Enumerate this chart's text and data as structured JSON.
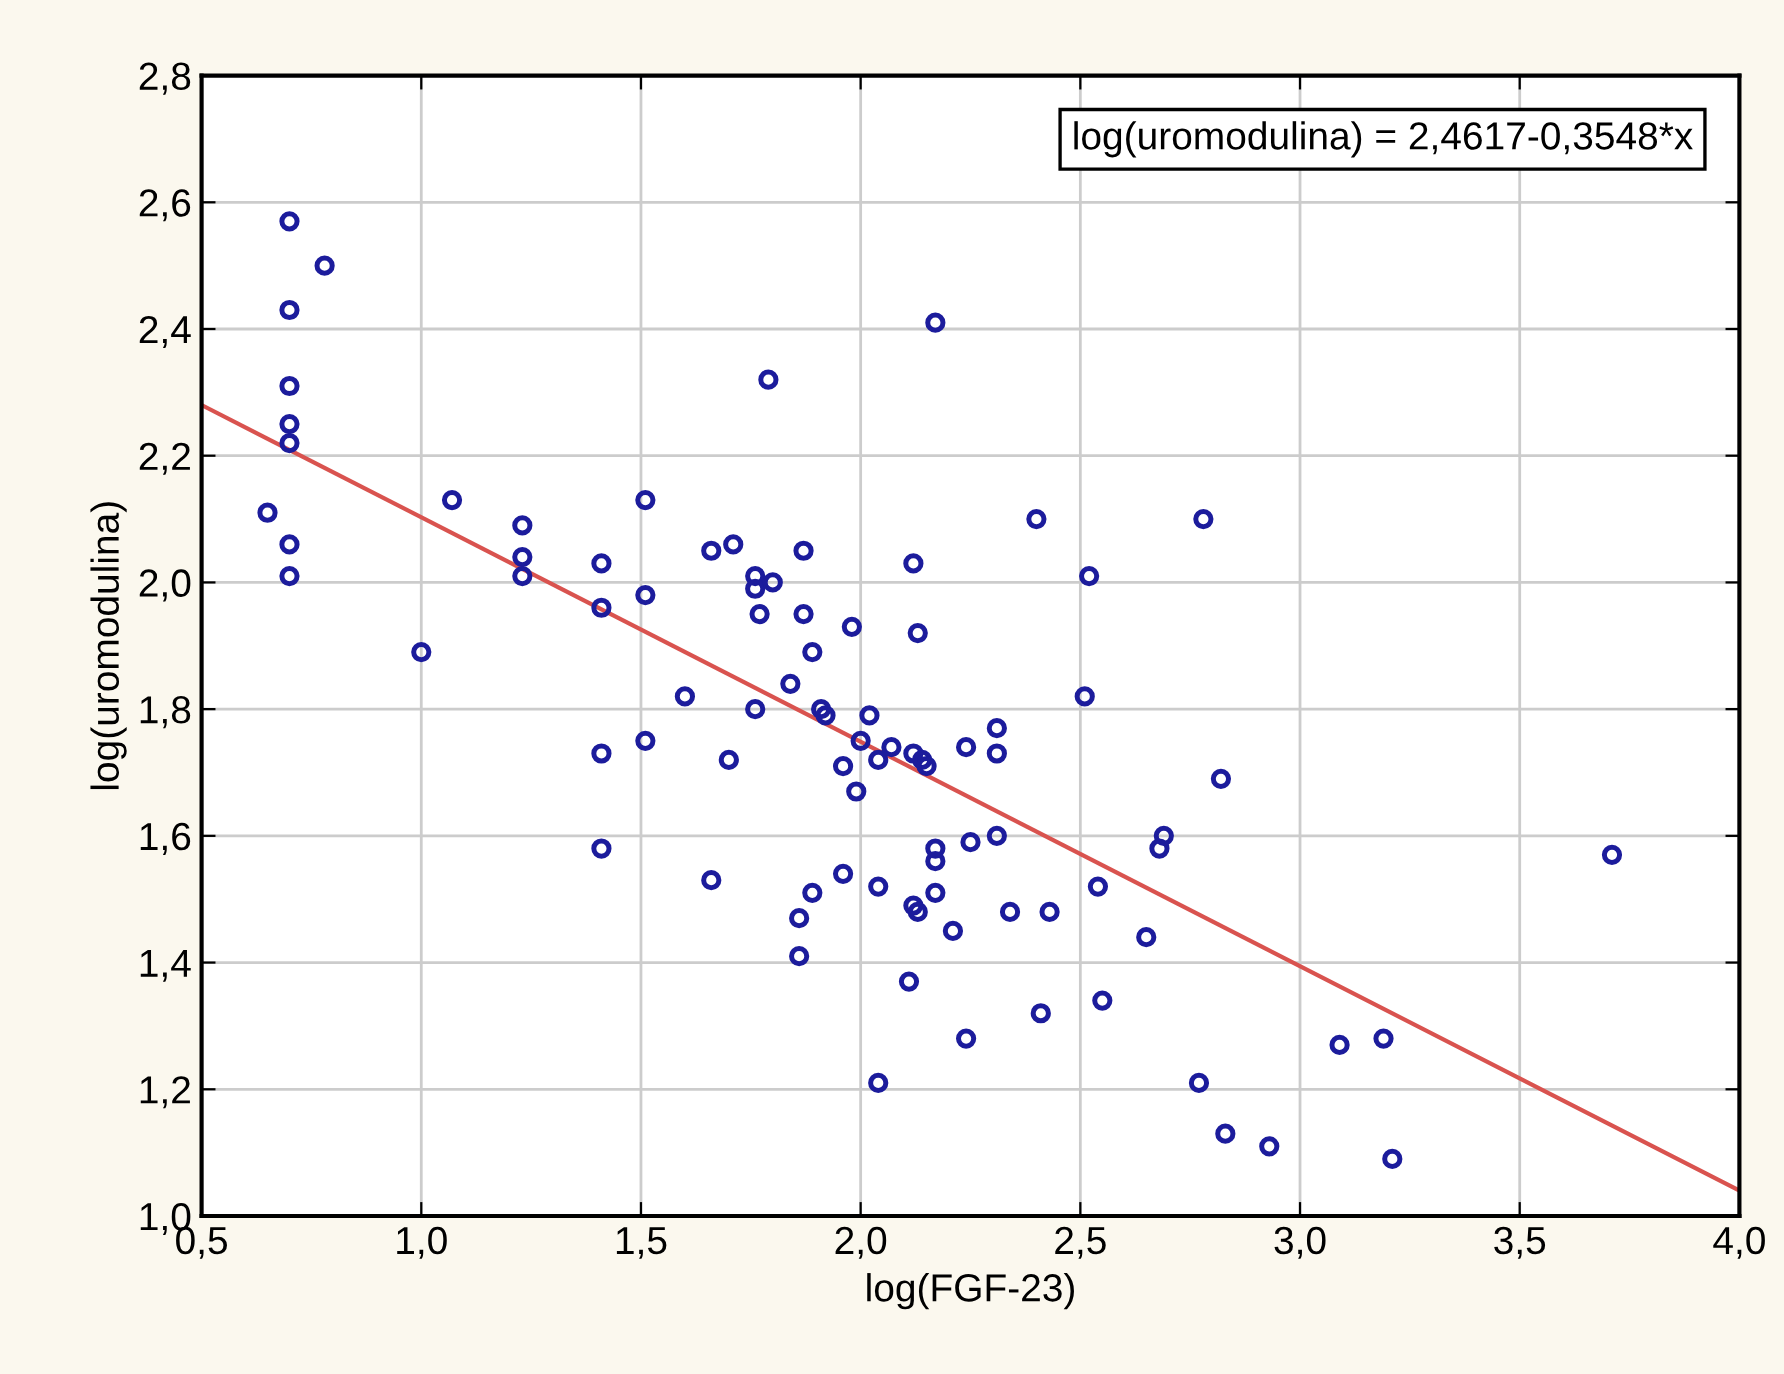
{
  "chart_data": {
    "type": "scatter",
    "xlabel": "log(FGF-23)",
    "ylabel": "log(uromodulina)",
    "xlim": [
      0.5,
      4.0
    ],
    "ylim": [
      1.0,
      2.8
    ],
    "xticks": [
      {
        "value": 0.5,
        "label": "0,5"
      },
      {
        "value": 1.0,
        "label": "1,0"
      },
      {
        "value": 1.5,
        "label": "1,5"
      },
      {
        "value": 2.0,
        "label": "2,0"
      },
      {
        "value": 2.5,
        "label": "2,5"
      },
      {
        "value": 3.0,
        "label": "3,0"
      },
      {
        "value": 3.5,
        "label": "3,5"
      },
      {
        "value": 4.0,
        "label": "4,0"
      }
    ],
    "yticks": [
      {
        "value": 1.0,
        "label": "1,0"
      },
      {
        "value": 1.2,
        "label": "1,2"
      },
      {
        "value": 1.4,
        "label": "1,4"
      },
      {
        "value": 1.6,
        "label": "1,6"
      },
      {
        "value": 1.8,
        "label": "1,8"
      },
      {
        "value": 2.0,
        "label": "2,0"
      },
      {
        "value": 2.2,
        "label": "2,2"
      },
      {
        "value": 2.4,
        "label": "2,4"
      },
      {
        "value": 2.6,
        "label": "2,6"
      },
      {
        "value": 2.8,
        "label": "2,8"
      }
    ],
    "grid": true,
    "annotations": [
      "log(uromodulina) = 2,4617-0,3548*x"
    ],
    "series": [
      {
        "marker": "circle",
        "color": "#1c1c9c",
        "x": [
          0.7,
          0.78,
          0.7,
          0.7,
          0.7,
          0.7,
          0.65,
          0.7,
          0.7,
          1.0,
          1.07,
          1.23,
          1.23,
          1.23,
          1.41,
          1.41,
          1.41,
          1.41,
          1.51,
          1.51,
          1.51,
          1.6,
          1.66,
          1.66,
          1.71,
          1.7,
          1.76,
          1.76,
          1.8,
          1.77,
          1.79,
          1.87,
          1.87,
          1.76,
          1.84,
          1.89,
          1.98,
          1.91,
          1.92,
          1.96,
          1.99,
          2.0,
          2.02,
          2.04,
          2.07,
          2.12,
          2.14,
          2.15,
          2.12,
          2.13,
          2.24,
          2.31,
          2.31,
          2.17,
          2.17,
          2.17,
          2.25,
          2.31,
          2.12,
          2.13,
          1.96,
          1.89,
          1.86,
          1.86,
          2.04,
          2.21,
          2.11,
          2.24,
          2.04,
          2.17,
          2.4,
          2.52,
          2.51,
          2.43,
          2.34,
          2.41,
          2.54,
          2.55,
          2.82,
          2.78,
          2.68,
          2.69,
          2.65,
          2.77,
          2.83,
          2.93,
          3.09,
          3.19,
          3.21,
          3.71
        ],
        "values": [
          2.57,
          2.5,
          2.43,
          2.31,
          2.25,
          2.22,
          2.11,
          2.06,
          2.01,
          1.89,
          2.13,
          2.09,
          2.04,
          2.01,
          2.03,
          1.96,
          1.73,
          1.58,
          2.13,
          1.98,
          1.75,
          1.82,
          2.05,
          1.53,
          2.06,
          1.72,
          2.01,
          1.99,
          2.0,
          1.95,
          2.32,
          2.05,
          1.95,
          1.8,
          1.84,
          1.89,
          1.93,
          1.8,
          1.79,
          1.71,
          1.67,
          1.75,
          1.79,
          1.72,
          1.74,
          1.73,
          1.72,
          1.71,
          2.03,
          1.92,
          1.74,
          1.77,
          1.73,
          1.58,
          1.56,
          1.51,
          1.59,
          1.6,
          1.49,
          1.48,
          1.54,
          1.51,
          1.47,
          1.41,
          1.52,
          1.45,
          1.37,
          1.28,
          1.21,
          2.41,
          2.1,
          2.01,
          1.82,
          1.48,
          1.48,
          1.32,
          1.52,
          1.34,
          1.69,
          2.1,
          1.58,
          1.6,
          1.44,
          1.21,
          1.13,
          1.11,
          1.27,
          1.28,
          1.09,
          1.57
        ]
      },
      {
        "type": "line",
        "marker": "none",
        "color": "#d9534f",
        "x": [
          0.5,
          4.0
        ],
        "values": [
          2.28,
          1.04
        ]
      }
    ]
  }
}
